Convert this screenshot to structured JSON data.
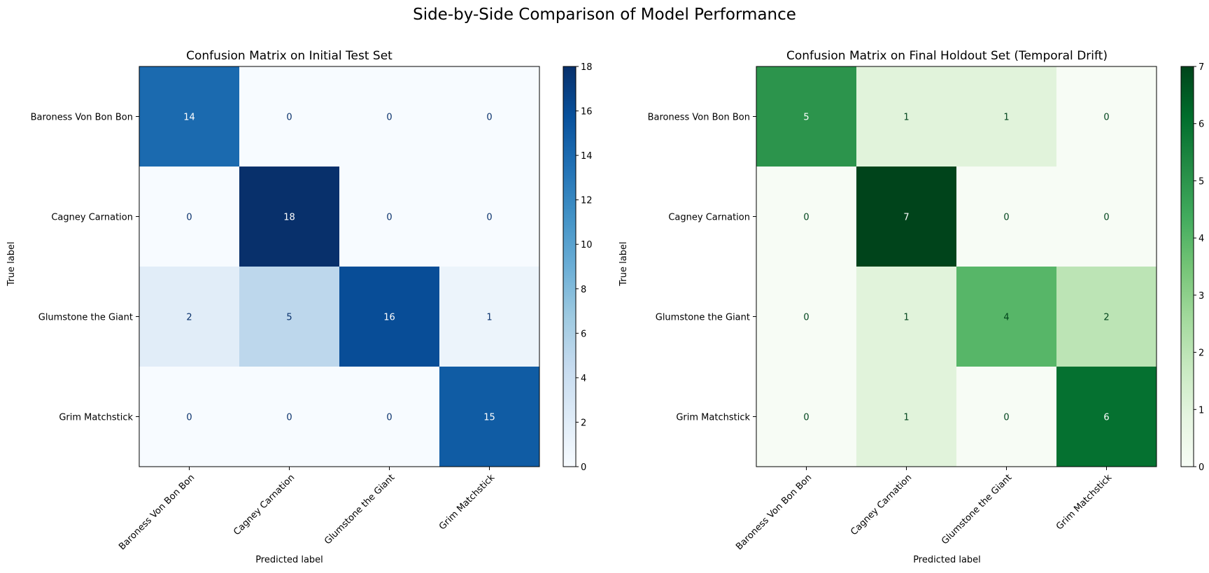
{
  "figure": {
    "suptitle": "Side-by-Side Comparison of Model Performance"
  },
  "chart_data": [
    {
      "type": "heatmap",
      "title": "Confusion Matrix on Initial Test Set",
      "xlabel": "Predicted label",
      "ylabel": "True label",
      "x_categories": [
        "Baroness Von Bon Bon",
        "Cagney Carnation",
        "Glumstone the Giant",
        "Grim Matchstick"
      ],
      "y_categories": [
        "Baroness Von Bon Bon",
        "Cagney Carnation",
        "Glumstone the Giant",
        "Grim Matchstick"
      ],
      "values": [
        [
          14,
          0,
          0,
          0
        ],
        [
          0,
          18,
          0,
          0
        ],
        [
          2,
          5,
          16,
          1
        ],
        [
          0,
          0,
          0,
          15
        ]
      ],
      "colormap": "Blues",
      "color_low": "#f7fbff",
      "color_high": "#08306b",
      "colorbar": {
        "min": 0,
        "max": 18,
        "ticks": [
          0,
          2,
          4,
          6,
          8,
          10,
          12,
          14,
          16,
          18
        ]
      }
    },
    {
      "type": "heatmap",
      "title": "Confusion Matrix on Final Holdout Set (Temporal Drift)",
      "xlabel": "Predicted label",
      "ylabel": "True label",
      "x_categories": [
        "Baroness Von Bon Bon",
        "Cagney Carnation",
        "Glumstone the Giant",
        "Grim Matchstick"
      ],
      "y_categories": [
        "Baroness Von Bon Bon",
        "Cagney Carnation",
        "Glumstone the Giant",
        "Grim Matchstick"
      ],
      "values": [
        [
          5,
          1,
          1,
          0
        ],
        [
          0,
          7,
          0,
          0
        ],
        [
          0,
          1,
          4,
          2
        ],
        [
          0,
          1,
          0,
          6
        ]
      ],
      "colormap": "Greens",
      "color_low": "#f7fcf5",
      "color_high": "#00441b",
      "colorbar": {
        "min": 0,
        "max": 7,
        "ticks": [
          0,
          1,
          2,
          3,
          4,
          5,
          6,
          7
        ]
      }
    }
  ]
}
